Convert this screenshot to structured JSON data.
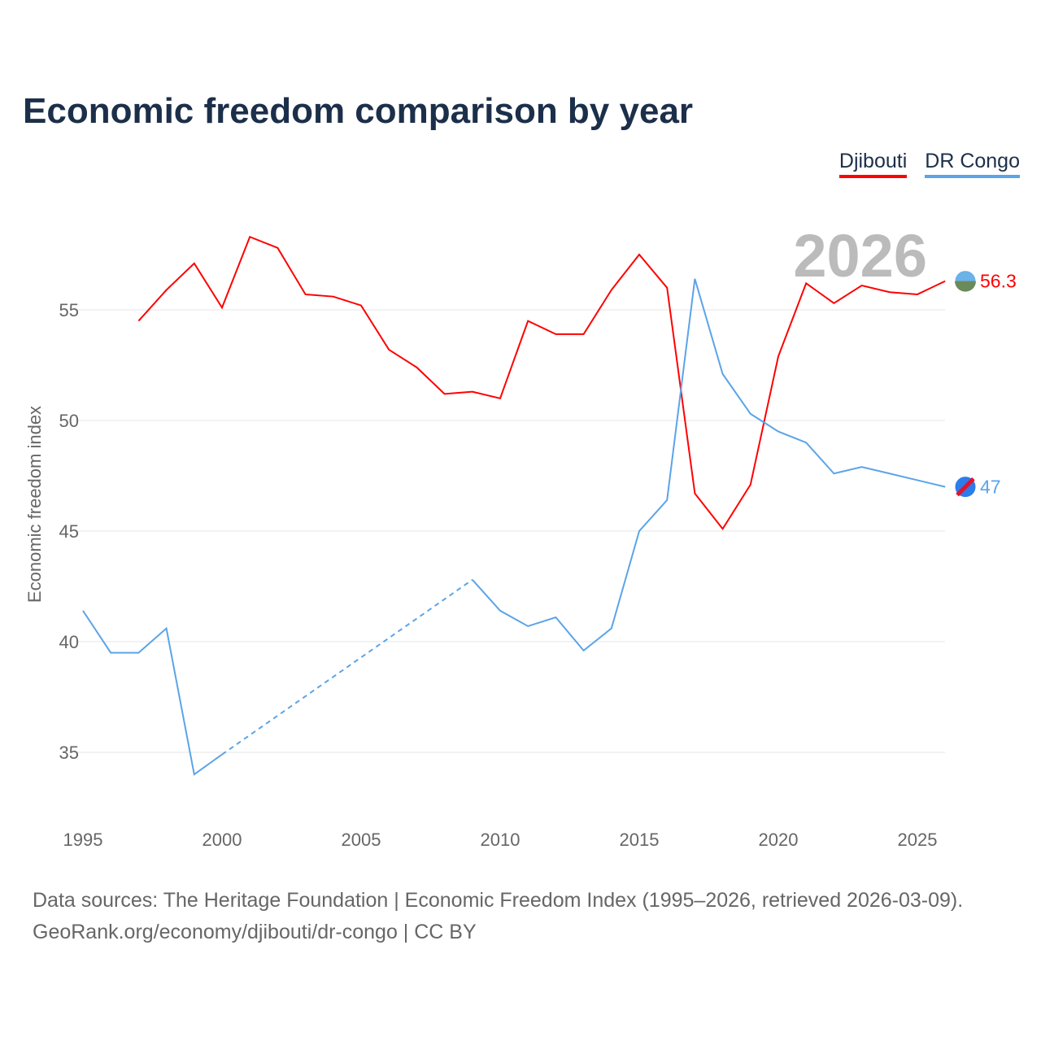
{
  "chart_data": {
    "type": "line",
    "title": "Economic freedom comparison by year",
    "xlabel": "",
    "ylabel": "Economic freedom index",
    "xlim": [
      1995,
      2026
    ],
    "ylim": [
      33,
      59
    ],
    "xticks": [
      1995,
      2000,
      2005,
      2010,
      2015,
      2020,
      2025
    ],
    "yticks": [
      35,
      40,
      45,
      50,
      55
    ],
    "grid": true,
    "legend_position": "top-right",
    "year_label": "2026",
    "x": [
      1995,
      1996,
      1997,
      1998,
      1999,
      2000,
      2001,
      2002,
      2003,
      2004,
      2005,
      2006,
      2007,
      2008,
      2009,
      2010,
      2011,
      2012,
      2013,
      2014,
      2015,
      2016,
      2017,
      2018,
      2019,
      2020,
      2021,
      2022,
      2023,
      2024,
      2025,
      2026
    ],
    "series": [
      {
        "name": "Djibouti",
        "color": "#ff0000",
        "end_label": "56.3",
        "values": [
          null,
          null,
          54.5,
          55.9,
          57.1,
          55.1,
          58.3,
          57.8,
          55.7,
          55.6,
          55.2,
          53.2,
          52.4,
          51.2,
          51.3,
          51.0,
          54.5,
          53.9,
          53.9,
          55.9,
          57.5,
          56.0,
          46.7,
          45.1,
          47.1,
          52.9,
          56.2,
          55.3,
          56.1,
          55.8,
          55.7,
          56.3
        ]
      },
      {
        "name": "DR Congo",
        "color": "#5ba4e8",
        "end_label": "47",
        "values": [
          41.4,
          39.5,
          39.5,
          40.6,
          34.0,
          34.9,
          null,
          null,
          null,
          null,
          null,
          null,
          null,
          null,
          42.8,
          41.4,
          40.7,
          41.1,
          39.6,
          40.6,
          45.0,
          46.4,
          56.4,
          52.1,
          50.3,
          49.5,
          49.0,
          47.6,
          47.9,
          47.6,
          47.3,
          47.0
        ]
      }
    ]
  },
  "footer": {
    "line1": "Data sources: The Heritage Foundation | Economic Freedom Index (1995–2026, retrieved 2026-03-09).",
    "line2": "GeoRank.org/economy/djibouti/dr-congo | CC BY"
  }
}
